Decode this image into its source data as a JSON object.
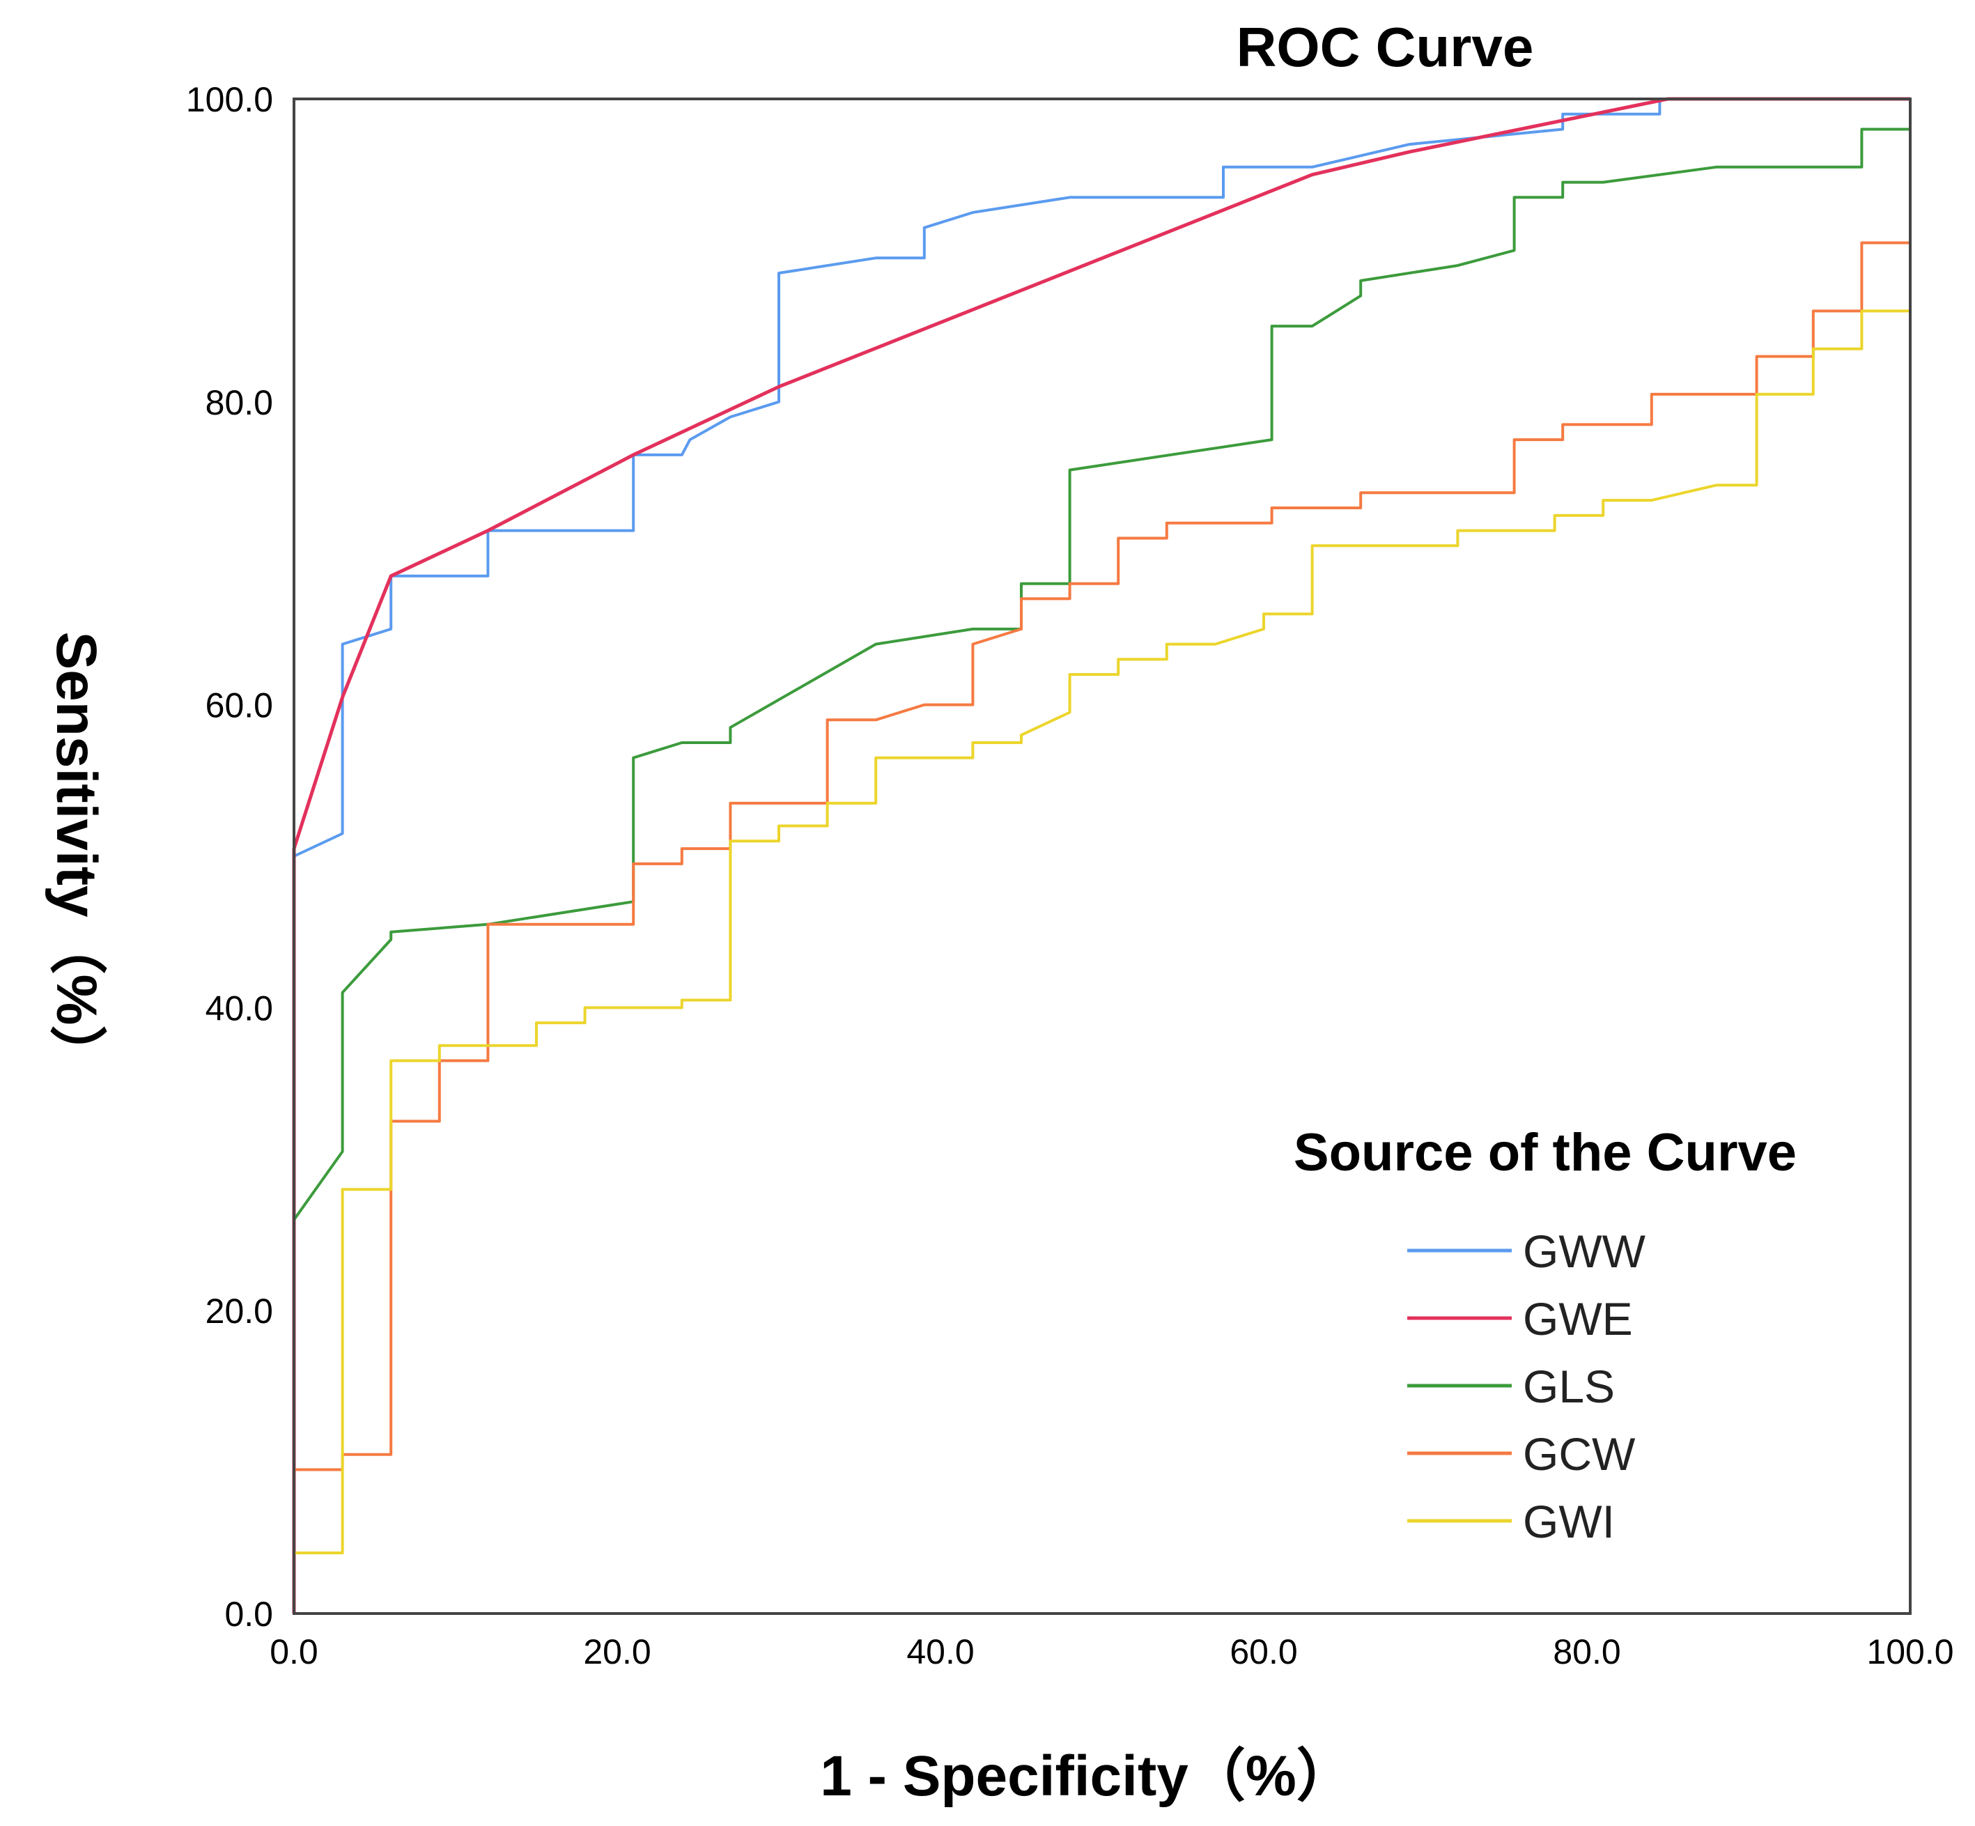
{
  "chart_data": {
    "type": "line",
    "title": "ROC Curve",
    "xlabel": "1 - Specificity（%）",
    "ylabel": "Sensitivity（%）",
    "xlim": [
      0,
      100
    ],
    "ylim": [
      0,
      100
    ],
    "x_ticks": [
      "0.0",
      "20.0",
      "40.0",
      "60.0",
      "80.0",
      "100.0"
    ],
    "y_ticks": [
      "0.0",
      "20.0",
      "40.0",
      "60.0",
      "80.0",
      "100.0"
    ],
    "grid": false,
    "legend": {
      "title": "Source of the Curve",
      "placement": "bottom-right"
    },
    "series": [
      {
        "name": "GWW",
        "color": "#5b9bef",
        "points": [
          [
            0,
            0
          ],
          [
            0,
            50
          ],
          [
            3,
            51.5
          ],
          [
            3,
            64
          ],
          [
            6,
            65
          ],
          [
            6,
            68.5
          ],
          [
            12,
            68.5
          ],
          [
            12,
            71.5
          ],
          [
            21,
            71.5
          ],
          [
            21,
            76.5
          ],
          [
            24,
            76.5
          ],
          [
            24.5,
            77.5
          ],
          [
            27,
            79
          ],
          [
            30,
            80
          ],
          [
            30,
            88.5
          ],
          [
            36,
            89.5
          ],
          [
            39,
            89.5
          ],
          [
            39,
            91.5
          ],
          [
            42,
            92.5
          ],
          [
            48,
            93.5
          ],
          [
            57.5,
            93.5
          ],
          [
            57.5,
            95.5
          ],
          [
            63,
            95.5
          ],
          [
            69,
            97
          ],
          [
            78.5,
            98
          ],
          [
            78.5,
            99
          ],
          [
            84.5,
            99
          ],
          [
            84.5,
            100
          ],
          [
            100,
            100
          ]
        ]
      },
      {
        "name": "GWE",
        "color": "#e3315c",
        "points": [
          [
            0,
            0
          ],
          [
            0,
            50.5
          ],
          [
            3,
            60.5
          ],
          [
            6,
            68.5
          ],
          [
            12,
            71.5
          ],
          [
            21,
            76.5
          ],
          [
            30,
            81
          ],
          [
            63,
            95
          ],
          [
            69,
            96.5
          ],
          [
            85,
            100
          ],
          [
            100,
            100
          ]
        ]
      },
      {
        "name": "GLS",
        "color": "#3c9b3c",
        "points": [
          [
            0,
            0
          ],
          [
            0,
            26
          ],
          [
            3,
            30.5
          ],
          [
            3,
            41
          ],
          [
            6,
            44.5
          ],
          [
            6,
            45
          ],
          [
            12,
            45.5
          ],
          [
            21,
            47
          ],
          [
            21,
            56.5
          ],
          [
            24,
            57.5
          ],
          [
            27,
            57.5
          ],
          [
            27,
            58.5
          ],
          [
            36,
            64
          ],
          [
            42,
            65
          ],
          [
            45,
            65
          ],
          [
            45,
            68
          ],
          [
            48,
            68
          ],
          [
            48,
            75.5
          ],
          [
            60.5,
            77.5
          ],
          [
            60.5,
            85
          ],
          [
            63,
            85
          ],
          [
            66,
            87
          ],
          [
            66,
            88
          ],
          [
            72,
            89
          ],
          [
            75.5,
            90
          ],
          [
            75.5,
            93.5
          ],
          [
            78.5,
            93.5
          ],
          [
            78.5,
            94.5
          ],
          [
            81,
            94.5
          ],
          [
            88,
            95.5
          ],
          [
            97,
            95.5
          ],
          [
            97,
            98
          ],
          [
            100,
            98
          ],
          [
            100,
            100
          ]
        ]
      },
      {
        "name": "GCW",
        "color": "#f57a42",
        "points": [
          [
            0,
            0
          ],
          [
            0,
            9.5
          ],
          [
            3,
            9.5
          ],
          [
            3,
            10.5
          ],
          [
            6,
            10.5
          ],
          [
            6,
            32.5
          ],
          [
            9,
            32.5
          ],
          [
            9,
            36.5
          ],
          [
            12,
            36.5
          ],
          [
            12,
            45.5
          ],
          [
            21,
            45.5
          ],
          [
            21,
            49.5
          ],
          [
            24,
            49.5
          ],
          [
            24,
            50.5
          ],
          [
            27,
            50.5
          ],
          [
            27,
            53.5
          ],
          [
            33,
            53.5
          ],
          [
            33,
            59
          ],
          [
            36,
            59
          ],
          [
            39,
            60
          ],
          [
            42,
            60
          ],
          [
            42,
            64
          ],
          [
            45,
            65
          ],
          [
            45,
            67
          ],
          [
            48,
            67
          ],
          [
            48,
            68
          ],
          [
            51,
            68
          ],
          [
            51,
            71
          ],
          [
            54,
            71
          ],
          [
            54,
            72
          ],
          [
            60.5,
            72
          ],
          [
            60.5,
            73
          ],
          [
            66,
            73
          ],
          [
            66,
            74
          ],
          [
            75.5,
            74
          ],
          [
            75.5,
            77.5
          ],
          [
            78.5,
            77.5
          ],
          [
            78.5,
            78.5
          ],
          [
            84,
            78.5
          ],
          [
            84,
            80.5
          ],
          [
            90.5,
            80.5
          ],
          [
            90.5,
            83
          ],
          [
            94,
            83
          ],
          [
            94,
            86
          ],
          [
            97,
            86
          ],
          [
            97,
            90.5
          ],
          [
            100,
            90.5
          ],
          [
            100,
            100
          ]
        ]
      },
      {
        "name": "GWI",
        "color": "#ecd52c",
        "points": [
          [
            0,
            0
          ],
          [
            0,
            4
          ],
          [
            3,
            4
          ],
          [
            3,
            28
          ],
          [
            6,
            28
          ],
          [
            6,
            36.5
          ],
          [
            9,
            36.5
          ],
          [
            9,
            37.5
          ],
          [
            15,
            37.5
          ],
          [
            15,
            39
          ],
          [
            18,
            39
          ],
          [
            18,
            40
          ],
          [
            24,
            40
          ],
          [
            24,
            40.5
          ],
          [
            27,
            40.5
          ],
          [
            27,
            51
          ],
          [
            30,
            51
          ],
          [
            30,
            52
          ],
          [
            33,
            52
          ],
          [
            33,
            53.5
          ],
          [
            36,
            53.5
          ],
          [
            36,
            56.5
          ],
          [
            39,
            56.5
          ],
          [
            42,
            56.5
          ],
          [
            42,
            57.5
          ],
          [
            45,
            57.5
          ],
          [
            45,
            58
          ],
          [
            48,
            59.5
          ],
          [
            48,
            62
          ],
          [
            51,
            62
          ],
          [
            51,
            63
          ],
          [
            54,
            63
          ],
          [
            54,
            64
          ],
          [
            57,
            64
          ],
          [
            60,
            65
          ],
          [
            60,
            66
          ],
          [
            63,
            66
          ],
          [
            63,
            70.5
          ],
          [
            66,
            70.5
          ],
          [
            72,
            70.5
          ],
          [
            72,
            71.5
          ],
          [
            78,
            71.5
          ],
          [
            78,
            72.5
          ],
          [
            81,
            72.5
          ],
          [
            81,
            73.5
          ],
          [
            84,
            73.5
          ],
          [
            88,
            74.5
          ],
          [
            90.5,
            74.5
          ],
          [
            90.5,
            80.5
          ],
          [
            94,
            80.5
          ],
          [
            94,
            83.5
          ],
          [
            97,
            83.5
          ],
          [
            97,
            86
          ],
          [
            100,
            86
          ],
          [
            100,
            100
          ]
        ]
      }
    ]
  }
}
